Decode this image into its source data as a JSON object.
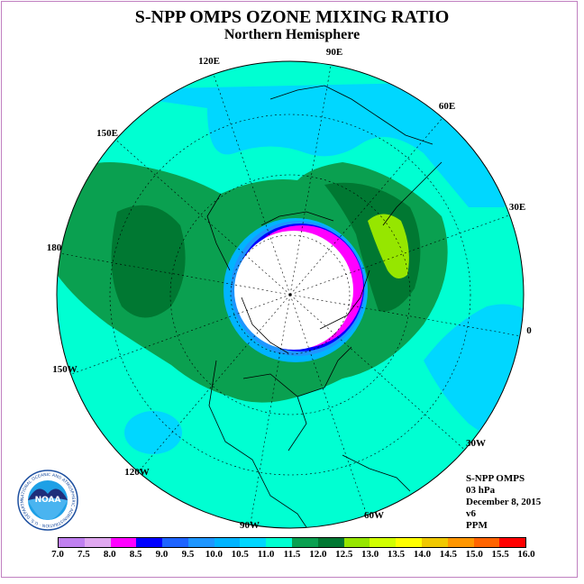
{
  "title": "S-NPP OMPS OZONE MIXING RATIO",
  "subtitle": "Northern Hemisphere",
  "longitude_labels": [
    {
      "id": "lon-90e",
      "text": "90E"
    },
    {
      "id": "lon-60e",
      "text": "60E"
    },
    {
      "id": "lon-30e",
      "text": "30E"
    },
    {
      "id": "lon-0",
      "text": "0"
    },
    {
      "id": "lon-30w",
      "text": "30W"
    },
    {
      "id": "lon-60w",
      "text": "60W"
    },
    {
      "id": "lon-90w",
      "text": "90W"
    },
    {
      "id": "lon-120w",
      "text": "120W"
    },
    {
      "id": "lon-150w",
      "text": "150W"
    },
    {
      "id": "lon-180",
      "text": "180"
    },
    {
      "id": "lon-150e",
      "text": "150E"
    },
    {
      "id": "lon-120e",
      "text": "120E"
    }
  ],
  "info": {
    "instrument": "S-NPP OMPS",
    "level": "03 hPa",
    "date": "December 8, 2015",
    "version": "v6",
    "units": "PPM"
  },
  "logo_text": "NOAA",
  "logo_ring_text": "NATIONAL OCEANIC AND ATMOSPHERIC ADMINISTRATION · U.S. DEPARTMENT OF COMMERCE",
  "colorbar": {
    "labels": [
      "7.0",
      "7.5",
      "8.0",
      "8.5",
      "9.0",
      "9.5",
      "10.0",
      "10.5",
      "11.0",
      "11.5",
      "12.0",
      "12.5",
      "13.0",
      "13.5",
      "14.0",
      "14.5",
      "15.0",
      "15.5",
      "16.0"
    ],
    "colors": [
      "#c080f0",
      "#e0a8f0",
      "#ff00ff",
      "#0000ff",
      "#1e64ff",
      "#1e96ff",
      "#00b4ff",
      "#00d7ff",
      "#00ffd2",
      "#0aa050",
      "#007832",
      "#96e600",
      "#d2ff00",
      "#ffff00",
      "#f0c800",
      "#ff9600",
      "#ff6400",
      "#ff0000",
      "#a05030"
    ]
  },
  "chart_data": {
    "type": "heatmap",
    "projection": "polar stereographic, Northern Hemisphere",
    "variable": "ozone mixing ratio",
    "units": "PPM",
    "level": "03 hPa",
    "date": "December 8, 2015",
    "levels": [
      7.0,
      7.5,
      8.0,
      8.5,
      9.0,
      9.5,
      10.0,
      10.5,
      11.0,
      11.5,
      12.0,
      12.5,
      13.0,
      13.5,
      14.0,
      14.5,
      15.0,
      15.5,
      16.0
    ],
    "regions": [
      {
        "area": "background",
        "value_range": [
          11.0,
          11.5
        ]
      },
      {
        "area": "band across North Pacific / Siberia",
        "value_range": [
          11.5,
          12.0
        ]
      },
      {
        "area": "core over western Siberia",
        "value_range": [
          12.0,
          12.5
        ]
      },
      {
        "area": "maximum over Scandinavia/NW Russia",
        "value_range": [
          12.5,
          13.0
        ]
      },
      {
        "area": "polar night (no data)",
        "value_range": null
      },
      {
        "area": "edge of polar night (Greenland/Atlantic)",
        "value_range": [
          8.0,
          10.5
        ]
      },
      {
        "area": "NE Pacific and North Atlantic",
        "value_range": [
          10.5,
          11.0
        ]
      }
    ]
  }
}
